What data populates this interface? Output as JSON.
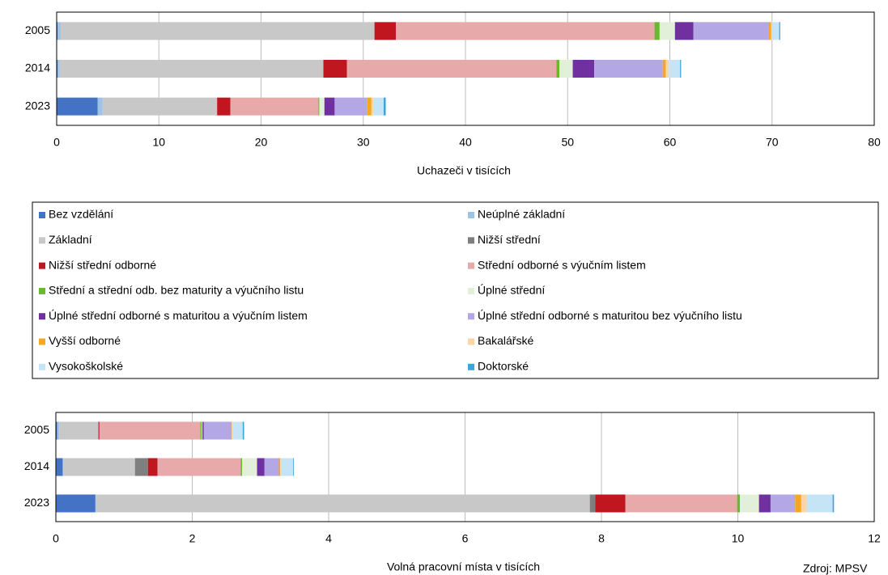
{
  "chart_data": [
    {
      "type": "bar",
      "orientation": "horizontal",
      "stacked": true,
      "x_label": "Uchazeči v tisících",
      "categories": [
        "2005",
        "2014",
        "2023"
      ],
      "xlim": [
        0,
        80
      ],
      "xticks": [
        0,
        10,
        20,
        30,
        40,
        50,
        60,
        70,
        80
      ],
      "grid": true,
      "series": [
        {
          "name": "Bez vzdělání",
          "color": "#4472c4",
          "values": [
            0.1,
            0.1,
            4.0
          ]
        },
        {
          "name": "Neúplné základní",
          "color": "#9dc3e6",
          "values": [
            0.3,
            0.2,
            0.5
          ]
        },
        {
          "name": "Základní",
          "color": "#c8c8c8",
          "values": [
            30.7,
            25.8,
            11.2
          ]
        },
        {
          "name": "Nižší střední",
          "color": "#7f7f7f",
          "values": [
            0,
            0,
            0
          ]
        },
        {
          "name": "Nižší střední odborné",
          "color": "#c0161f",
          "values": [
            2.1,
            2.3,
            1.3
          ]
        },
        {
          "name": "Střední odborné s výučním listem",
          "color": "#e8a9ab",
          "values": [
            25.3,
            20.5,
            8.6
          ]
        },
        {
          "name": "Střední a střední odb. bez maturity a výučního listu",
          "color": "#6ab82f",
          "values": [
            0.5,
            0.3,
            0.1
          ]
        },
        {
          "name": "Úplné střední",
          "color": "#e2efd9",
          "values": [
            1.5,
            1.3,
            0.5
          ]
        },
        {
          "name": "Úplné střední odborné s maturitou a výučním listem",
          "color": "#7030a0",
          "values": [
            1.8,
            2.1,
            1.0
          ]
        },
        {
          "name": "Úplné střední odborné s maturitou bez výučního listu",
          "color": "#b4a7e6",
          "values": [
            7.4,
            6.7,
            3.2
          ]
        },
        {
          "name": "Vyšší odborné",
          "color": "#f5a623",
          "values": [
            0.2,
            0.3,
            0.4
          ]
        },
        {
          "name": "Bakalářské",
          "color": "#fbd5a5",
          "values": [
            0.1,
            0.3,
            0.2
          ]
        },
        {
          "name": "Vysokoškolské",
          "color": "#c5e4f5",
          "values": [
            0.7,
            1.1,
            1.0
          ]
        },
        {
          "name": "Doktorské",
          "color": "#3ca5dc",
          "values": [
            0.1,
            0.1,
            0.2
          ]
        }
      ]
    },
    {
      "type": "bar",
      "orientation": "horizontal",
      "stacked": true,
      "x_label": "Volná pracovní místa  v tisících",
      "source": "Zdroj: MPSV",
      "categories": [
        "2005",
        "2014",
        "2023"
      ],
      "xlim": [
        0,
        12
      ],
      "xticks": [
        0,
        2,
        4,
        6,
        8,
        10,
        12
      ],
      "grid": true,
      "series": [
        {
          "values": [
            0.02,
            0.1,
            0.58
          ]
        },
        {
          "values": [
            0.03,
            0.01,
            0.01
          ]
        },
        {
          "values": [
            0.57,
            1.05,
            7.24
          ]
        },
        {
          "values": [
            0.01,
            0.19,
            0.08
          ]
        },
        {
          "values": [
            0.01,
            0.14,
            0.44
          ]
        },
        {
          "values": [
            1.48,
            1.22,
            1.64
          ]
        },
        {
          "values": [
            0.02,
            0.02,
            0.04
          ]
        },
        {
          "values": [
            0.01,
            0.22,
            0.28
          ]
        },
        {
          "values": [
            0.02,
            0.11,
            0.17
          ]
        },
        {
          "values": [
            0.4,
            0.21,
            0.36
          ]
        },
        {
          "values": [
            0.01,
            0.02,
            0.09
          ]
        },
        {
          "values": [
            0.01,
            0.01,
            0.08
          ]
        },
        {
          "values": [
            0.15,
            0.18,
            0.38
          ]
        },
        {
          "values": [
            0.02,
            0.01,
            0.02
          ]
        }
      ]
    }
  ]
}
